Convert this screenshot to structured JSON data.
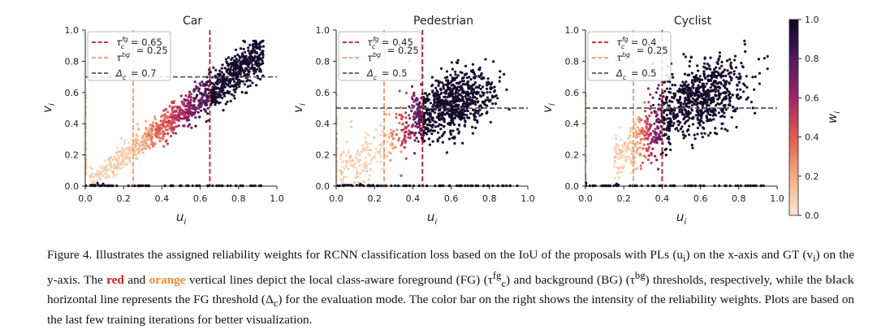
{
  "figure": {
    "colorbar": {
      "label": "w_i",
      "label_text": "w",
      "label_sub": "i",
      "ticks": [
        "0.0",
        "0.2",
        "0.4",
        "0.6",
        "0.8",
        "1.0"
      ],
      "tick_values": [
        0.0,
        0.2,
        0.4,
        0.6,
        0.8,
        1.0
      ],
      "colors": [
        "#fbe6d3",
        "#f2ad7e",
        "#e35a52",
        "#a0246a",
        "#4e1a60",
        "#0c0824"
      ]
    },
    "threshold_colors": {
      "fg": "#c41a25",
      "bg": "#f0946b",
      "eval": "#555555"
    }
  },
  "chart_data": [
    {
      "type": "scatter",
      "title": "Car",
      "xlabel": "u_i",
      "ylabel": "v_i",
      "xlim": [
        0,
        1.0
      ],
      "ylim": [
        0,
        1.0
      ],
      "xticks": [
        "0.0",
        "0.2",
        "0.4",
        "0.6",
        "0.8",
        "1.0"
      ],
      "yticks": [
        "0.0",
        "0.2",
        "0.4",
        "0.6",
        "0.8",
        "1.0"
      ],
      "thresholds": {
        "fg": 0.65,
        "bg": 0.25,
        "eval": 0.7
      },
      "legend": [
        {
          "kind": "fg",
          "symbol": "τ",
          "sup": "fg",
          "sub": "c",
          "value": "0.65"
        },
        {
          "kind": "bg",
          "symbol": "τ",
          "sup": "bg",
          "sub": "",
          "value": "0.25"
        },
        {
          "kind": "eval",
          "symbol": "Δ",
          "sup": "",
          "sub": "c",
          "value": "0.7"
        }
      ],
      "cloud": {
        "kind": "diagonal",
        "slope": 0.92,
        "spread": 0.06,
        "count": 1100,
        "xmin": 0.02,
        "xmax": 0.93
      }
    },
    {
      "type": "scatter",
      "title": "Pedestrian",
      "xlabel": "u_i",
      "ylabel": "v_i",
      "xlim": [
        0,
        1.0
      ],
      "ylim": [
        0,
        1.0
      ],
      "xticks": [
        "0.0",
        "0.2",
        "0.4",
        "0.6",
        "0.8",
        "1.0"
      ],
      "yticks": [
        "0.0",
        "0.2",
        "0.4",
        "0.6",
        "0.8",
        "1.0"
      ],
      "thresholds": {
        "fg": 0.45,
        "bg": 0.25,
        "eval": 0.5
      },
      "legend": [
        {
          "kind": "fg",
          "symbol": "τ",
          "sup": "fg",
          "sub": "c",
          "value": "0.45"
        },
        {
          "kind": "bg",
          "symbol": "τ",
          "sup": "bg",
          "sub": "",
          "value": "0.25"
        },
        {
          "kind": "eval",
          "symbol": "Δ",
          "sup": "",
          "sub": "c",
          "value": "0.5"
        }
      ],
      "cloud": {
        "kind": "blob",
        "cx": 0.6,
        "cy": 0.52,
        "sx": 0.11,
        "sy": 0.1,
        "count": 1000,
        "xmin": 0.02,
        "xmax": 0.92
      }
    },
    {
      "type": "scatter",
      "title": "Cyclist",
      "xlabel": "u_i",
      "ylabel": "v_i",
      "xlim": [
        0,
        1.0
      ],
      "ylim": [
        0,
        1.0
      ],
      "xticks": [
        "0.0",
        "0.2",
        "0.4",
        "0.6",
        "0.8",
        "1.0"
      ],
      "yticks": [
        "0.0",
        "0.2",
        "0.4",
        "0.6",
        "0.8",
        "1.0"
      ],
      "thresholds": {
        "fg": 0.4,
        "bg": 0.25,
        "eval": 0.5
      },
      "legend": [
        {
          "kind": "fg",
          "symbol": "τ",
          "sup": "fg",
          "sub": "c",
          "value": "0.4"
        },
        {
          "kind": "bg",
          "symbol": "τ",
          "sup": "bg",
          "sub": "",
          "value": "0.25"
        },
        {
          "kind": "eval",
          "symbol": "Δ",
          "sup": "",
          "sub": "c",
          "value": "0.5"
        }
      ],
      "cloud": {
        "kind": "blob",
        "cx": 0.6,
        "cy": 0.56,
        "sx": 0.12,
        "sy": 0.11,
        "count": 1000,
        "xmin": 0.15,
        "xmax": 0.92
      }
    }
  ],
  "caption": {
    "p1": "Figure 4. Illustrates the assigned reliability weights for RCNN classification loss based on the IoU of the proposals with PLs (u",
    "p1_sub": "i",
    "p2": ") on the x-axis and GT (v",
    "p2_sub": "i",
    "p3": ") on the y-axis. The ",
    "red_word": "red",
    "p4": " and ",
    "orange_word": "orange",
    "p5": " vertical lines depict the local class-aware foreground (FG) (τ",
    "p5_sup": "fg",
    "p5_sub": "c",
    "p6": ") and background (BG) (τ",
    "p6_sup": "bg",
    "p7": ") thresholds, respectively, while the ",
    "black_word": "black",
    "p8": " horizontal line represents the FG threshold (Δ",
    "p8_sub": "c",
    "p9": ") for the evaluation mode. The color bar on the right shows the intensity of the reliability weights. Plots are based on the last few training iterations for better visualization."
  }
}
